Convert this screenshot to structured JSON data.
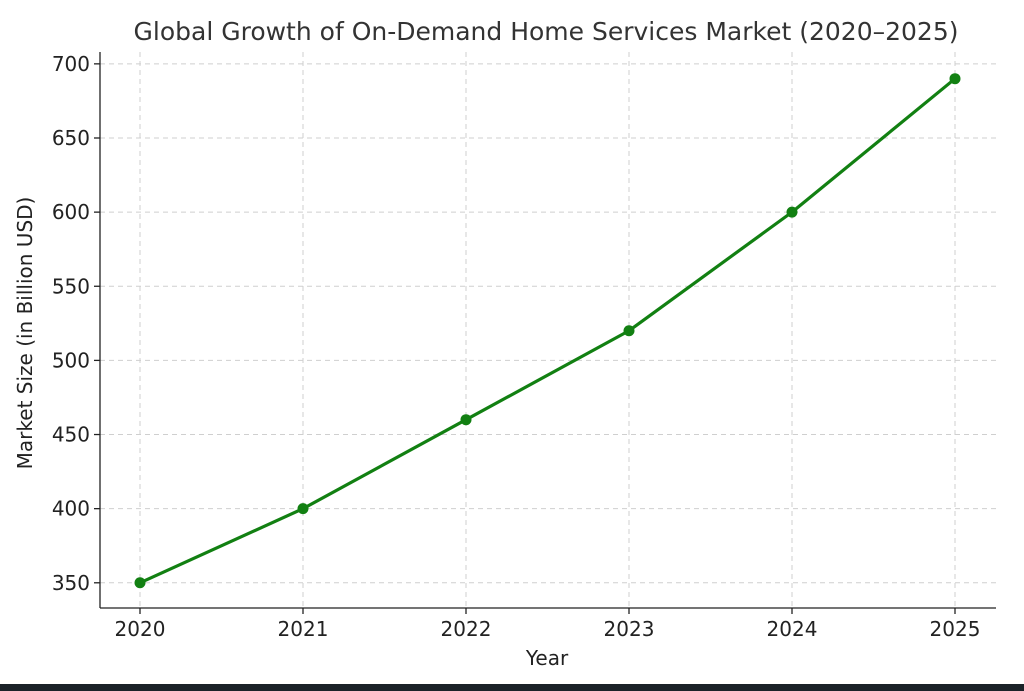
{
  "chart_data": {
    "type": "line",
    "title": "Global Growth of On-Demand Home Services Market (2020–2025)",
    "xlabel": "Year",
    "ylabel": "Market Size (in Billion USD)",
    "x": [
      "2020",
      "2021",
      "2022",
      "2023",
      "2024",
      "2025"
    ],
    "series": [
      {
        "values": [
          350,
          400,
          460,
          520,
          600,
          690
        ],
        "color": "#128012"
      }
    ],
    "yticks": [
      350,
      400,
      450,
      500,
      550,
      600,
      650,
      700
    ],
    "ylim": [
      333,
      708
    ],
    "grid": true,
    "marker": "circle",
    "legend": "none"
  }
}
